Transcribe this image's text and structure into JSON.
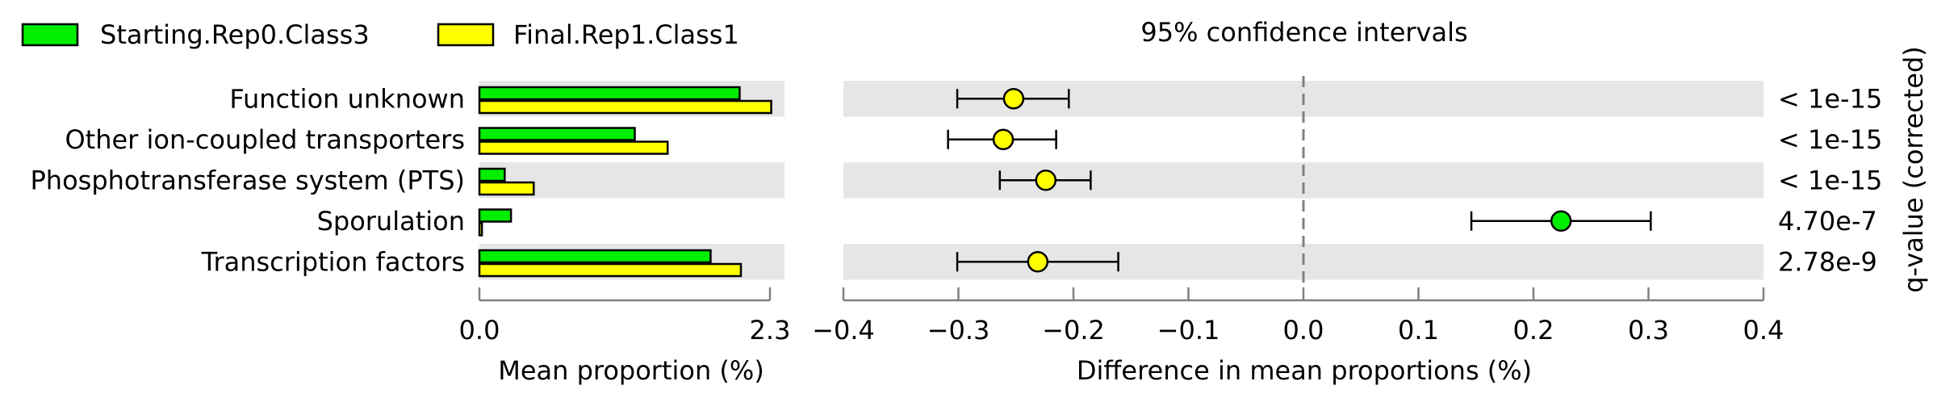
{
  "legend": [
    {
      "label": "Starting.Rep0.Class3",
      "color": "#00ee00"
    },
    {
      "label": "Final.Rep1.Class1",
      "color": "#ffff00"
    }
  ],
  "chart_data": [
    {
      "type": "bar",
      "orientation": "horizontal",
      "categories": [
        "Function unknown",
        "Other ion-coupled transporters",
        "Phosphotransferase system (PTS)",
        "Sporulation",
        "Transcription factors"
      ],
      "series": [
        {
          "name": "Starting.Rep0.Class3",
          "color": "#00ee00",
          "values": [
            2.06,
            1.23,
            0.2,
            0.25,
            1.83
          ]
        },
        {
          "name": "Final.Rep1.Class1",
          "color": "#ffff00",
          "values": [
            2.31,
            1.49,
            0.43,
            0.02,
            2.07
          ]
        }
      ],
      "xlabel": "Mean proportion (%)",
      "xlim": [
        0.0,
        2.3
      ],
      "xticks": [
        "0.0",
        "2.3"
      ],
      "grid": false
    },
    {
      "type": "scatter",
      "title": "95% confidence intervals",
      "categories": [
        "Function unknown",
        "Other ion-coupled transporters",
        "Phosphotransferase system (PTS)",
        "Sporulation",
        "Transcription factors"
      ],
      "points": [
        {
          "estimate": -0.252,
          "lower": -0.301,
          "upper": -0.204,
          "color": "#ffff00"
        },
        {
          "estimate": -0.261,
          "lower": -0.309,
          "upper": -0.215,
          "color": "#ffff00"
        },
        {
          "estimate": -0.224,
          "lower": -0.264,
          "upper": -0.185,
          "color": "#ffff00"
        },
        {
          "estimate": 0.224,
          "lower": 0.146,
          "upper": 0.302,
          "color": "#00ee00"
        },
        {
          "estimate": -0.231,
          "lower": -0.301,
          "upper": -0.161,
          "color": "#ffff00"
        }
      ],
      "xlabel": "Difference in mean proportions (%)",
      "xlim": [
        -0.4,
        0.4
      ],
      "xticks": [
        "−0.4",
        "−0.3",
        "−0.2",
        "−0.1",
        "0.0",
        "0.1",
        "0.2",
        "0.3",
        "0.4"
      ],
      "reference_line": 0.0,
      "ylabel_right": "q-value (corrected)",
      "qvalues": [
        "< 1e-15",
        "< 1e-15",
        "< 1e-15",
        "4.70e-7",
        "2.78e-9"
      ]
    }
  ]
}
